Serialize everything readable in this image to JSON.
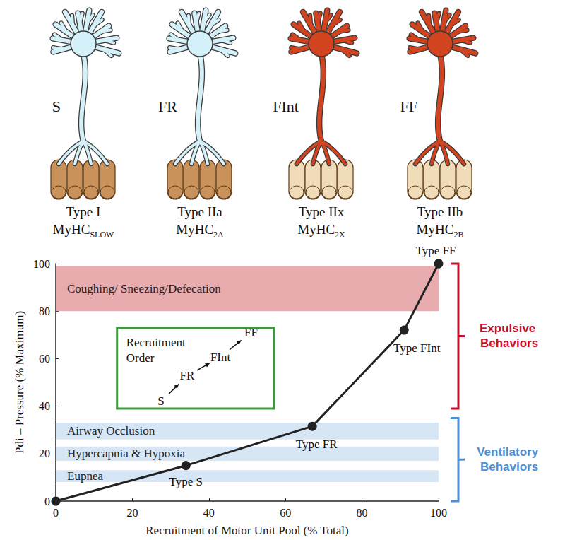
{
  "motor_units": [
    {
      "unit": "S",
      "fiber_type": "Type I",
      "myhc": "MyHC",
      "myhc_subscript": "SLOW",
      "neuron_color": "#d4f0f8",
      "fiber_color": "#c8925a"
    },
    {
      "unit": "FR",
      "fiber_type": "Type IIa",
      "myhc": "MyHC",
      "myhc_subscript": "2A",
      "neuron_color": "#d4f0f8",
      "fiber_color": "#c8925a"
    },
    {
      "unit": "FInt",
      "fiber_type": "Type IIx",
      "myhc": "MyHC",
      "myhc_subscript": "2X",
      "neuron_color": "#d2431f",
      "fiber_color": "#f0dcb8"
    },
    {
      "unit": "FF",
      "fiber_type": "Type IIb",
      "myhc": "MyHC",
      "myhc_subscript": "2B",
      "neuron_color": "#d2431f",
      "fiber_color": "#f0dcb8"
    }
  ],
  "chart_data": {
    "type": "line",
    "xlabel": "Recruitment of Motor Unit Pool (% Total)",
    "ylabel": "Pdi – Pressure (% Maximum)",
    "x": [
      0,
      34,
      67,
      91,
      100
    ],
    "values": [
      0,
      15,
      31.5,
      72,
      100
    ],
    "point_labels": [
      null,
      "Type S",
      "Type FR",
      "Type FInt",
      "Type FF"
    ],
    "color": "#222222",
    "marker": "circle",
    "xlim": [
      0,
      100
    ],
    "xticks": [
      0,
      20,
      40,
      60,
      80,
      100
    ],
    "ylim": [
      0,
      100
    ],
    "yticks": [
      0,
      20,
      40,
      60,
      80,
      100
    ],
    "grid": false,
    "bands": [
      {
        "label": "Eupnea",
        "from": 8,
        "to": 13,
        "color": "#d6e6f5"
      },
      {
        "label": "Hypercapnia & Hypoxia",
        "from": 17,
        "to": 23,
        "color": "#d6e6f5"
      },
      {
        "label": "Airway Occlusion",
        "from": 26,
        "to": 33,
        "color": "#d6e6f5"
      },
      {
        "label": "Coughing/ Sneezing/Defecation",
        "from": 80,
        "to": 99,
        "color": "#e8abae"
      }
    ],
    "brackets": [
      {
        "label": "Expulsive Behaviors",
        "from": 39,
        "to": 100,
        "color": "#c8102e"
      },
      {
        "label": "Ventilatory Behaviors",
        "from": 0,
        "to": 35,
        "color": "#4a90d9"
      }
    ],
    "inset": {
      "title": "Recruitment Order",
      "items": [
        "S",
        "FR",
        "FInt",
        "FF"
      ],
      "color": "#3c9a3c"
    }
  }
}
